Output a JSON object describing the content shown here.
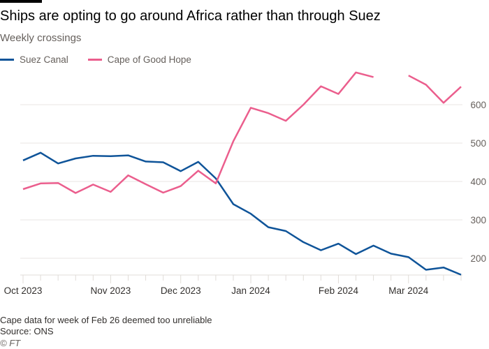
{
  "title": "Ships are opting to go around Africa rather than through Suez",
  "subtitle": "Weekly crossings",
  "footnote": "Cape data for week of Feb 26 deemed too unreliable",
  "source": "Source: ONS",
  "copyright": "© FT",
  "colors": {
    "suez": "#0f5499",
    "cape": "#eb5e8d"
  },
  "chart_data": {
    "type": "line",
    "title": "Ships are opting to go around Africa rather than through Suez",
    "ylabel": "Weekly crossings",
    "ylim": [
      156,
      700
    ],
    "yticks": [
      200,
      300,
      400,
      500,
      600
    ],
    "y_axis_side": "right",
    "grid": true,
    "legend_placement": "top-left",
    "x": [
      "2023-10-02",
      "2023-10-09",
      "2023-10-16",
      "2023-10-23",
      "2023-10-30",
      "2023-11-06",
      "2023-11-13",
      "2023-11-20",
      "2023-11-27",
      "2023-12-04",
      "2023-12-11",
      "2023-12-18",
      "2023-12-25",
      "2024-01-01",
      "2024-01-08",
      "2024-01-15",
      "2024-01-22",
      "2024-01-29",
      "2024-02-05",
      "2024-02-12",
      "2024-02-19",
      "2024-02-26",
      "2024-03-04",
      "2024-03-11",
      "2024-03-18",
      "2024-03-25"
    ],
    "xticks": [
      {
        "index": 0,
        "label": "Oct 2023"
      },
      {
        "index": 5,
        "label": "Nov 2023"
      },
      {
        "index": 9,
        "label": "Dec 2023"
      },
      {
        "index": 13,
        "label": "Jan 2024"
      },
      {
        "index": 18,
        "label": "Feb 2024"
      },
      {
        "index": 22,
        "label": "Mar 2024"
      }
    ],
    "series": [
      {
        "name": "Suez Canal",
        "color": "#0f5499",
        "values": [
          455,
          475,
          447,
          460,
          467,
          466,
          468,
          452,
          450,
          427,
          451,
          408,
          341,
          316,
          281,
          271,
          242,
          221,
          238,
          211,
          233,
          212,
          203,
          170,
          176,
          157
        ]
      },
      {
        "name": "Cape of Good Hope",
        "color": "#eb5e8d",
        "values": [
          380,
          395,
          396,
          370,
          392,
          373,
          416,
          393,
          371,
          388,
          428,
          395,
          505,
          592,
          578,
          558,
          600,
          648,
          628,
          684,
          672,
          null,
          676,
          652,
          605,
          647
        ]
      }
    ]
  }
}
